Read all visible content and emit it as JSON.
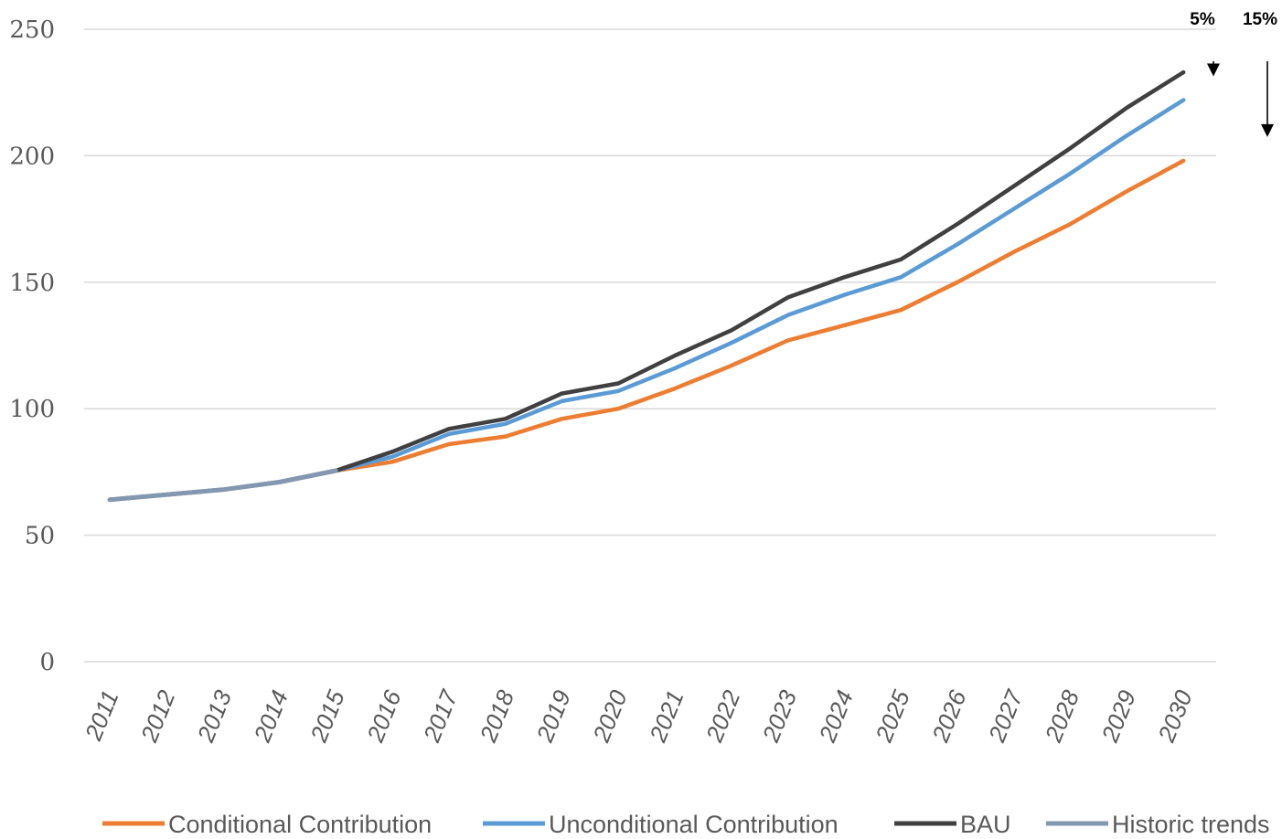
{
  "chart_data": {
    "type": "line",
    "x": [
      "2011",
      "2012",
      "2013",
      "2014",
      "2015",
      "2016",
      "2017",
      "2018",
      "2019",
      "2020",
      "2021",
      "2022",
      "2023",
      "2024",
      "2025",
      "2026",
      "2027",
      "2028",
      "2029",
      "2030"
    ],
    "ylim": [
      0,
      250
    ],
    "yticks": [
      "0",
      "50",
      "100",
      "150",
      "200",
      "250"
    ],
    "grid": true,
    "legend_position": "bottom",
    "series": [
      {
        "name": "Conditional Contribution",
        "color": "#ED7D31",
        "values": [
          64,
          66,
          68,
          71,
          75.5,
          79,
          86,
          89,
          96,
          100,
          108,
          117,
          127,
          133,
          139,
          150,
          162,
          173,
          186,
          198
        ]
      },
      {
        "name": "Unconditional Contribution",
        "color": "#5B9BD5",
        "values": [
          64,
          66,
          68,
          71,
          75.5,
          81,
          90,
          94,
          103,
          107,
          116,
          126,
          137,
          145,
          152,
          165,
          179,
          193,
          208,
          222
        ]
      },
      {
        "name": "BAU",
        "color": "#404040",
        "values": [
          64,
          66,
          68,
          71,
          75.5,
          83,
          92,
          96,
          106,
          110,
          121,
          131,
          144,
          152,
          159,
          173,
          188,
          203,
          219,
          233
        ]
      },
      {
        "name": "Historic trends",
        "color": "#8497B0",
        "values": [
          64,
          66,
          68,
          71,
          75.5,
          null,
          null,
          null,
          null,
          null,
          null,
          null,
          null,
          null,
          null,
          null,
          null,
          null,
          null,
          null
        ]
      }
    ],
    "annotations": [
      {
        "label": "5%",
        "from": 233,
        "to": 222
      },
      {
        "label": "15%",
        "from": 233,
        "to": 198
      }
    ]
  }
}
